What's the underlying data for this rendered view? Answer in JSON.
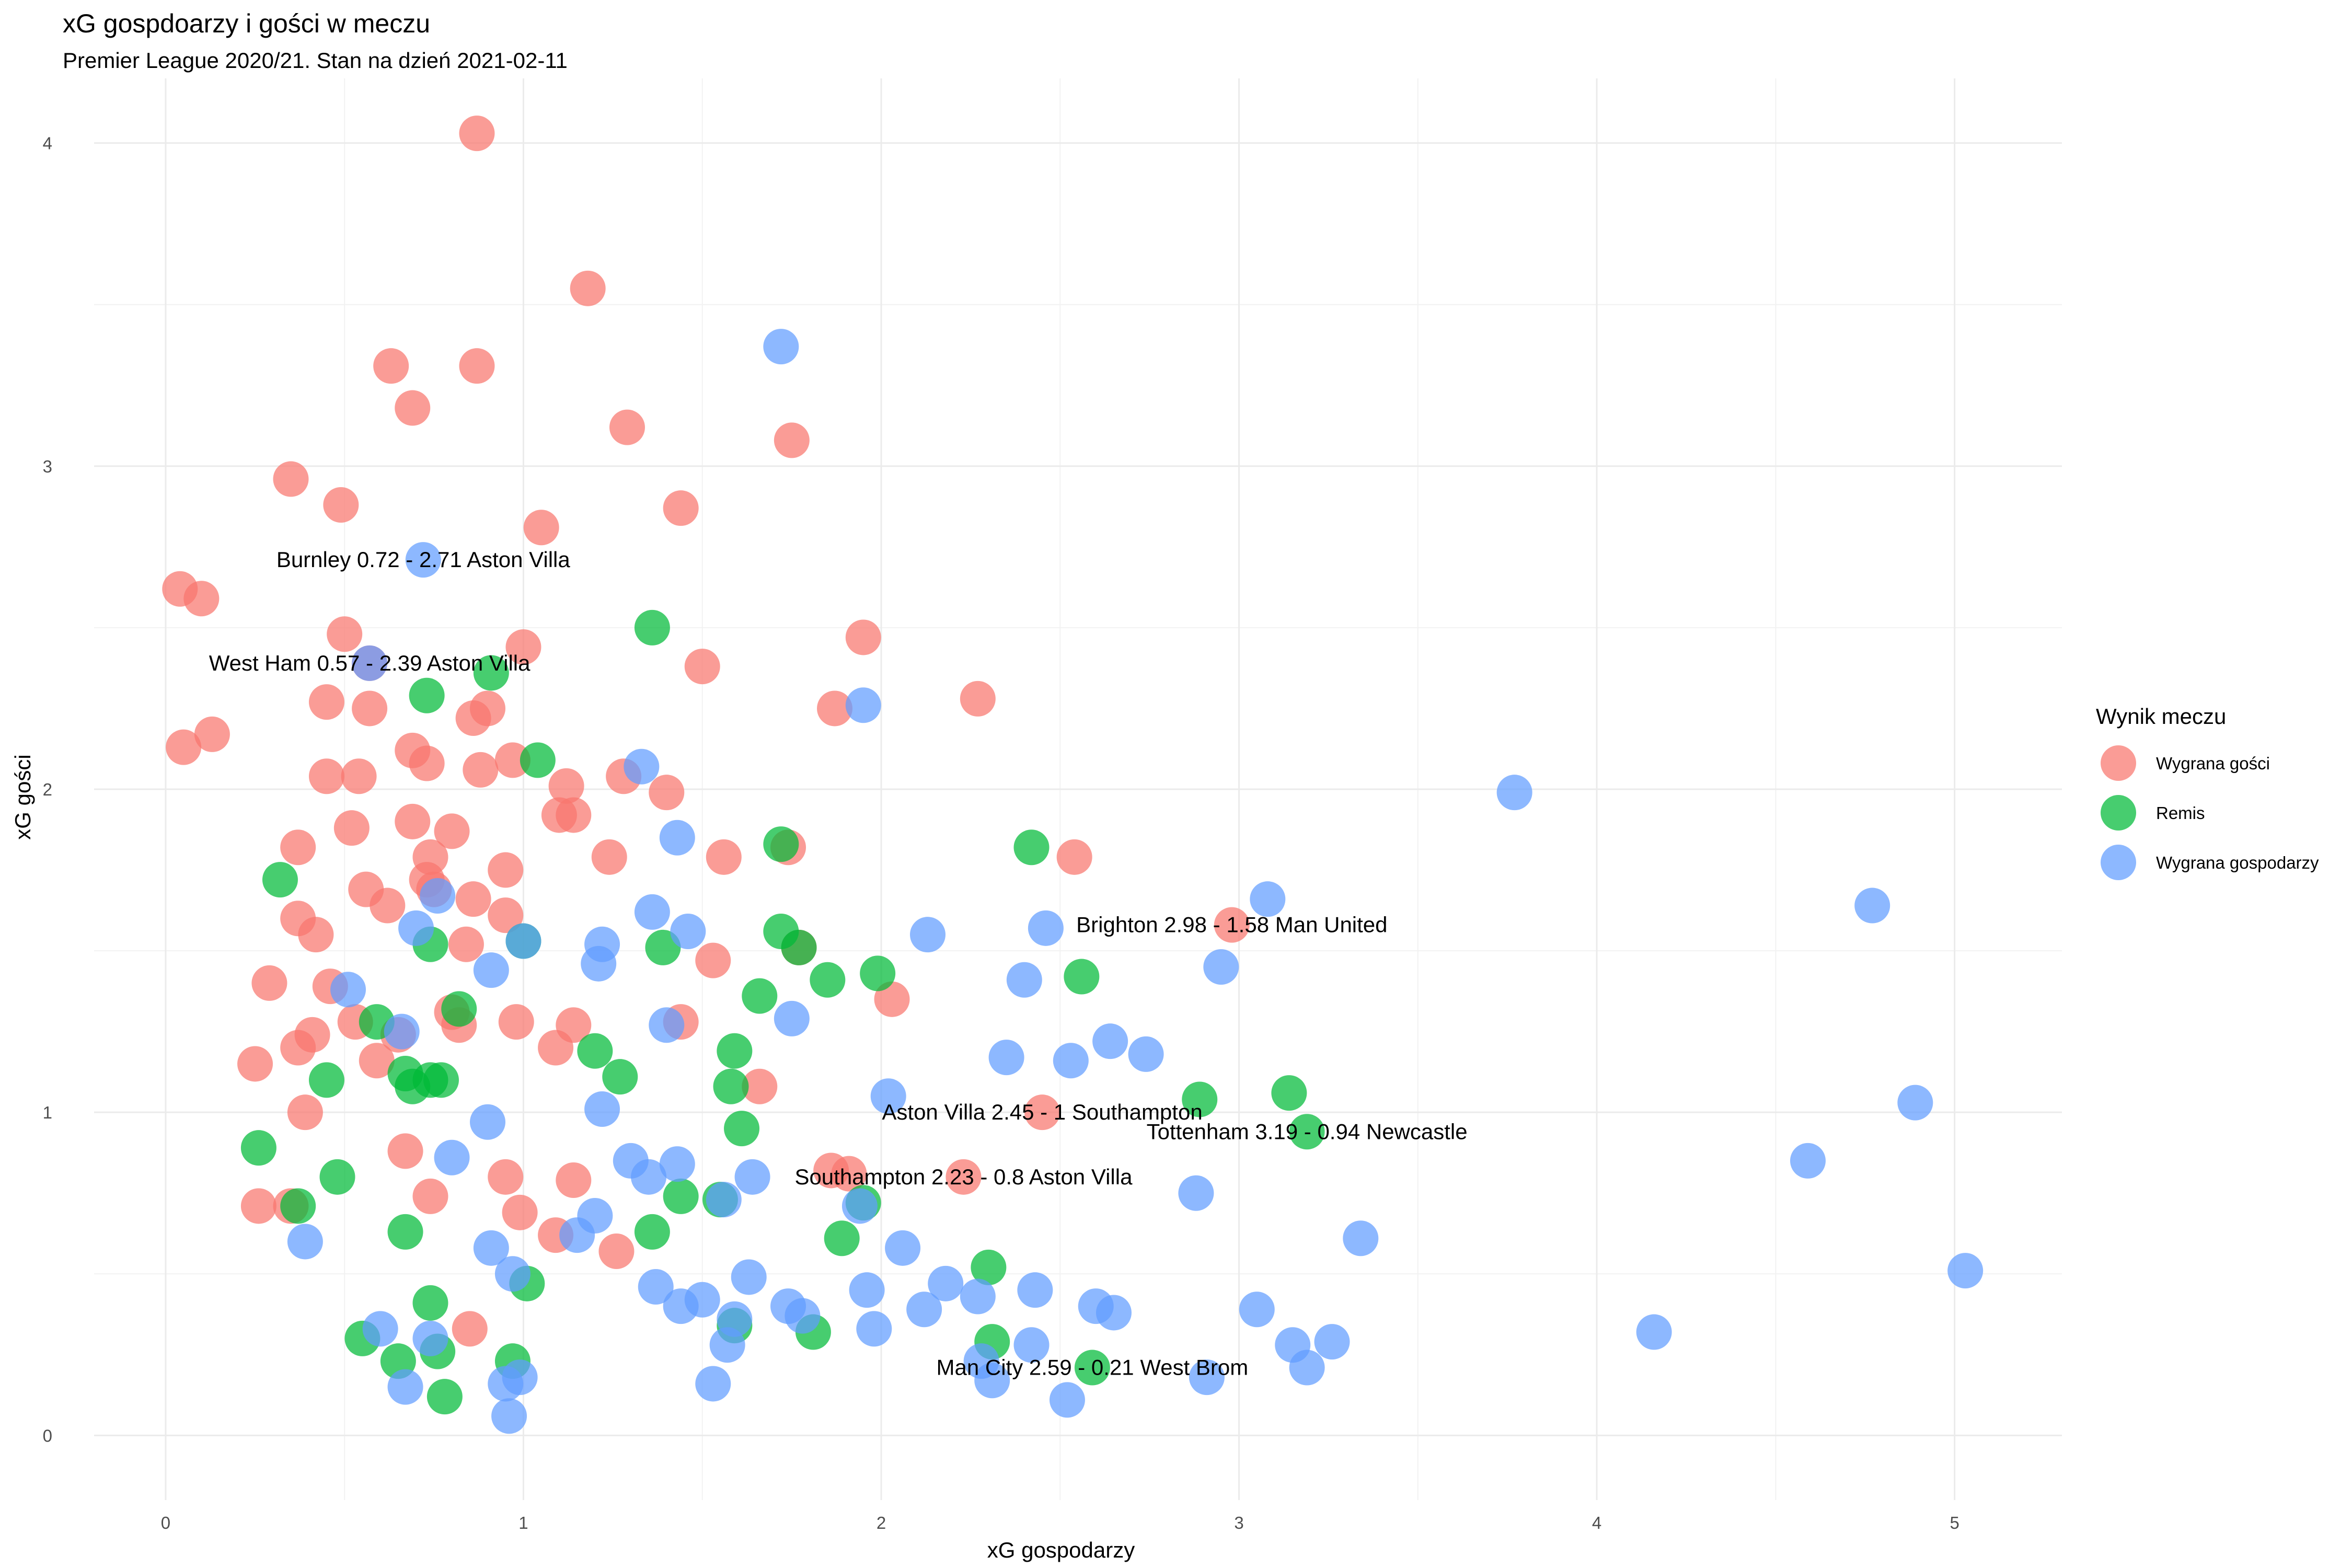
{
  "chart_data": {
    "type": "scatter",
    "title": "xG gospdoarzy i gości w meczu",
    "subtitle": "Premier League 2020/21. Stan na dzień 2021-02-11",
    "xlabel": "xG gospodarzy",
    "ylabel": "xG gości",
    "xlim": [
      -0.2,
      5.3
    ],
    "ylim": [
      -0.2,
      4.2
    ],
    "x_ticks": [
      "0",
      "1",
      "2",
      "3",
      "4",
      "5"
    ],
    "y_ticks": [
      "0",
      "1",
      "2",
      "3",
      "4"
    ],
    "grid": true,
    "legend": {
      "title": "Wynik meczu",
      "position": "right",
      "entries": [
        {
          "name": "Wygrana gości",
          "color": "#F8766D"
        },
        {
          "name": "Remis",
          "color": "#00BA38"
        },
        {
          "name": "Wygrana gospodarzy",
          "color": "#619CFF"
        }
      ]
    },
    "annotations": [
      {
        "text": "Burnley 0.72 - 2.71 Aston Villa",
        "x": 0.72,
        "y": 2.71
      },
      {
        "text": "West Ham 0.57 - 2.39 Aston Villa",
        "x": 0.57,
        "y": 2.39
      },
      {
        "text": "Brighton 2.98 - 1.58 Man United",
        "x": 2.98,
        "y": 1.58
      },
      {
        "text": "Aston Villa 2.45 - 1 Southampton",
        "x": 2.45,
        "y": 1.0
      },
      {
        "text": "Tottenham 3.19 - 0.94 Newcastle",
        "x": 3.19,
        "y": 0.94
      },
      {
        "text": "Southampton 2.23 - 0.8 Aston Villa",
        "x": 2.23,
        "y": 0.8
      },
      {
        "text": "Man City 2.59 - 0.21 West Brom",
        "x": 2.59,
        "y": 0.21
      }
    ],
    "series": [
      {
        "name": "Wygrana gości",
        "color": "#F8766D",
        "points": [
          [
            0.87,
            4.03
          ],
          [
            1.18,
            3.55
          ],
          [
            0.63,
            3.31
          ],
          [
            0.87,
            3.31
          ],
          [
            0.69,
            3.18
          ],
          [
            1.29,
            3.12
          ],
          [
            1.75,
            3.08
          ],
          [
            0.35,
            2.96
          ],
          [
            0.49,
            2.88
          ],
          [
            1.44,
            2.87
          ],
          [
            1.05,
            2.81
          ],
          [
            0.04,
            2.62
          ],
          [
            0.1,
            2.59
          ],
          [
            0.5,
            2.48
          ],
          [
            1.95,
            2.47
          ],
          [
            1.0,
            2.44
          ],
          [
            0.57,
            2.39
          ],
          [
            1.5,
            2.38
          ],
          [
            2.27,
            2.28
          ],
          [
            0.45,
            2.27
          ],
          [
            0.57,
            2.25
          ],
          [
            0.9,
            2.25
          ],
          [
            1.87,
            2.25
          ],
          [
            0.86,
            2.22
          ],
          [
            0.13,
            2.17
          ],
          [
            0.05,
            2.13
          ],
          [
            0.69,
            2.12
          ],
          [
            0.73,
            2.08
          ],
          [
            0.97,
            2.09
          ],
          [
            0.88,
            2.06
          ],
          [
            1.28,
            2.04
          ],
          [
            0.45,
            2.04
          ],
          [
            0.54,
            2.04
          ],
          [
            1.12,
            2.01
          ],
          [
            1.4,
            1.99
          ],
          [
            0.69,
            1.9
          ],
          [
            1.1,
            1.92
          ],
          [
            1.14,
            1.92
          ],
          [
            0.52,
            1.88
          ],
          [
            0.8,
            1.87
          ],
          [
            0.37,
            1.82
          ],
          [
            1.56,
            1.79
          ],
          [
            1.24,
            1.79
          ],
          [
            1.74,
            1.82
          ],
          [
            2.54,
            1.79
          ],
          [
            0.74,
            1.79
          ],
          [
            0.95,
            1.75
          ],
          [
            0.73,
            1.72
          ],
          [
            0.56,
            1.69
          ],
          [
            0.75,
            1.69
          ],
          [
            0.86,
            1.66
          ],
          [
            0.62,
            1.64
          ],
          [
            0.95,
            1.61
          ],
          [
            0.37,
            1.6
          ],
          [
            0.42,
            1.55
          ],
          [
            0.84,
            1.52
          ],
          [
            1.77,
            1.51
          ],
          [
            2.98,
            1.58
          ],
          [
            1.53,
            1.47
          ],
          [
            0.29,
            1.4
          ],
          [
            0.46,
            1.39
          ],
          [
            2.03,
            1.35
          ],
          [
            0.8,
            1.31
          ],
          [
            0.53,
            1.28
          ],
          [
            0.98,
            1.28
          ],
          [
            1.44,
            1.28
          ],
          [
            1.14,
            1.27
          ],
          [
            0.82,
            1.27
          ],
          [
            0.65,
            1.24
          ],
          [
            0.41,
            1.24
          ],
          [
            0.37,
            1.2
          ],
          [
            1.09,
            1.2
          ],
          [
            0.59,
            1.16
          ],
          [
            0.25,
            1.15
          ],
          [
            1.66,
            1.08
          ],
          [
            0.39,
            1.0
          ],
          [
            2.45,
            1.0
          ],
          [
            0.67,
            0.88
          ],
          [
            1.86,
            0.82
          ],
          [
            1.91,
            0.81
          ],
          [
            2.23,
            0.8
          ],
          [
            0.95,
            0.8
          ],
          [
            1.14,
            0.79
          ],
          [
            0.74,
            0.74
          ],
          [
            0.35,
            0.71
          ],
          [
            0.26,
            0.71
          ],
          [
            0.99,
            0.69
          ],
          [
            1.09,
            0.62
          ],
          [
            1.26,
            0.57
          ],
          [
            0.85,
            0.33
          ]
        ]
      },
      {
        "name": "Remis",
        "color": "#00BA38",
        "points": [
          [
            1.36,
            2.5
          ],
          [
            0.91,
            2.36
          ],
          [
            0.73,
            2.29
          ],
          [
            1.04,
            2.09
          ],
          [
            1.72,
            1.83
          ],
          [
            2.42,
            1.82
          ],
          [
            0.32,
            1.72
          ],
          [
            1.72,
            1.56
          ],
          [
            0.74,
            1.52
          ],
          [
            1.0,
            1.53
          ],
          [
            1.39,
            1.51
          ],
          [
            1.77,
            1.51
          ],
          [
            1.85,
            1.41
          ],
          [
            1.99,
            1.43
          ],
          [
            2.56,
            1.42
          ],
          [
            1.66,
            1.36
          ],
          [
            0.82,
            1.32
          ],
          [
            0.59,
            1.28
          ],
          [
            1.2,
            1.19
          ],
          [
            1.59,
            1.19
          ],
          [
            0.67,
            1.12
          ],
          [
            1.27,
            1.11
          ],
          [
            0.45,
            1.1
          ],
          [
            0.69,
            1.08
          ],
          [
            0.74,
            1.1
          ],
          [
            0.77,
            1.1
          ],
          [
            1.58,
            1.08
          ],
          [
            2.89,
            1.04
          ],
          [
            3.14,
            1.06
          ],
          [
            1.61,
            0.95
          ],
          [
            3.19,
            0.94
          ],
          [
            0.26,
            0.89
          ],
          [
            0.48,
            0.8
          ],
          [
            1.44,
            0.74
          ],
          [
            1.55,
            0.73
          ],
          [
            1.95,
            0.72
          ],
          [
            0.37,
            0.71
          ],
          [
            0.67,
            0.63
          ],
          [
            1.36,
            0.63
          ],
          [
            1.89,
            0.61
          ],
          [
            2.3,
            0.52
          ],
          [
            1.01,
            0.47
          ],
          [
            0.74,
            0.41
          ],
          [
            1.59,
            0.34
          ],
          [
            1.81,
            0.32
          ],
          [
            0.55,
            0.3
          ],
          [
            2.31,
            0.29
          ],
          [
            0.76,
            0.26
          ],
          [
            0.65,
            0.23
          ],
          [
            0.97,
            0.23
          ],
          [
            2.59,
            0.21
          ],
          [
            0.78,
            0.12
          ]
        ]
      },
      {
        "name": "Wygrana gospodarzy",
        "color": "#619CFF",
        "points": [
          [
            1.72,
            3.37
          ],
          [
            0.72,
            2.71
          ],
          [
            0.57,
            2.39
          ],
          [
            1.95,
            2.26
          ],
          [
            1.33,
            2.07
          ],
          [
            3.77,
            1.99
          ],
          [
            1.43,
            1.85
          ],
          [
            3.08,
            1.66
          ],
          [
            0.76,
            1.67
          ],
          [
            4.77,
            1.64
          ],
          [
            1.36,
            1.62
          ],
          [
            0.7,
            1.57
          ],
          [
            1.46,
            1.56
          ],
          [
            2.46,
            1.57
          ],
          [
            2.13,
            1.55
          ],
          [
            1.0,
            1.53
          ],
          [
            1.22,
            1.52
          ],
          [
            1.21,
            1.46
          ],
          [
            0.91,
            1.44
          ],
          [
            2.95,
            1.45
          ],
          [
            2.4,
            1.41
          ],
          [
            0.51,
            1.38
          ],
          [
            1.75,
            1.29
          ],
          [
            1.4,
            1.27
          ],
          [
            0.66,
            1.25
          ],
          [
            2.64,
            1.22
          ],
          [
            2.74,
            1.18
          ],
          [
            2.35,
            1.17
          ],
          [
            2.53,
            1.16
          ],
          [
            2.02,
            1.05
          ],
          [
            1.22,
            1.01
          ],
          [
            0.9,
            0.97
          ],
          [
            4.89,
            1.03
          ],
          [
            0.8,
            0.86
          ],
          [
            1.3,
            0.85
          ],
          [
            1.43,
            0.84
          ],
          [
            4.59,
            0.85
          ],
          [
            1.35,
            0.8
          ],
          [
            1.64,
            0.8
          ],
          [
            2.88,
            0.75
          ],
          [
            1.56,
            0.73
          ],
          [
            1.2,
            0.68
          ],
          [
            1.15,
            0.62
          ],
          [
            1.94,
            0.71
          ],
          [
            3.34,
            0.61
          ],
          [
            0.39,
            0.6
          ],
          [
            2.06,
            0.58
          ],
          [
            0.91,
            0.58
          ],
          [
            0.97,
            0.5
          ],
          [
            5.03,
            0.51
          ],
          [
            1.63,
            0.49
          ],
          [
            2.18,
            0.47
          ],
          [
            1.37,
            0.46
          ],
          [
            2.27,
            0.43
          ],
          [
            1.96,
            0.45
          ],
          [
            2.43,
            0.45
          ],
          [
            1.5,
            0.42
          ],
          [
            1.44,
            0.4
          ],
          [
            2.6,
            0.4
          ],
          [
            1.74,
            0.4
          ],
          [
            3.05,
            0.39
          ],
          [
            2.12,
            0.39
          ],
          [
            2.65,
            0.38
          ],
          [
            1.78,
            0.37
          ],
          [
            1.59,
            0.36
          ],
          [
            4.16,
            0.32
          ],
          [
            1.98,
            0.33
          ],
          [
            0.6,
            0.33
          ],
          [
            1.57,
            0.28
          ],
          [
            2.42,
            0.28
          ],
          [
            3.26,
            0.29
          ],
          [
            0.74,
            0.3
          ],
          [
            3.15,
            0.28
          ],
          [
            2.28,
            0.23
          ],
          [
            3.19,
            0.21
          ],
          [
            0.99,
            0.18
          ],
          [
            2.31,
            0.17
          ],
          [
            0.95,
            0.16
          ],
          [
            2.91,
            0.18
          ],
          [
            1.53,
            0.16
          ],
          [
            0.67,
            0.15
          ],
          [
            2.52,
            0.11
          ],
          [
            0.96,
            0.06
          ]
        ]
      }
    ]
  }
}
